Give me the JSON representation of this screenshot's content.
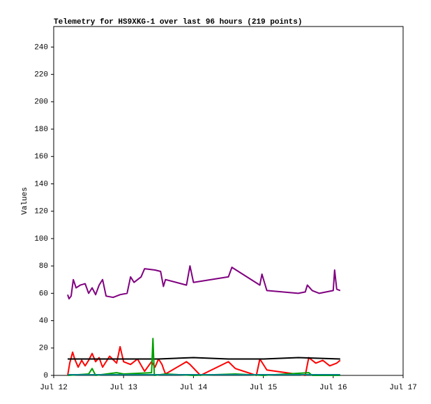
{
  "chart_data": {
    "type": "line",
    "title": "Telemetry for HS9XKG-1 over last 96 hours (219 points)",
    "y_label": "Values",
    "xlim": [
      0,
      5
    ],
    "xticks": [
      {
        "value": 0,
        "label": "Jul 12"
      },
      {
        "value": 1,
        "label": "Jul 13"
      },
      {
        "value": 2,
        "label": "Jul 14"
      },
      {
        "value": 3,
        "label": "Jul 15"
      },
      {
        "value": 4,
        "label": "Jul 16"
      },
      {
        "value": 5,
        "label": "Jul 17"
      }
    ],
    "ylim": [
      0,
      255
    ],
    "yticks": [
      0,
      20,
      40,
      60,
      80,
      100,
      120,
      140,
      160,
      180,
      200,
      220,
      240
    ],
    "series": [
      {
        "color": "#800080",
        "x": [
          0.2,
          0.22,
          0.25,
          0.28,
          0.32,
          0.38,
          0.45,
          0.5,
          0.55,
          0.6,
          0.65,
          0.7,
          0.75,
          0.85,
          0.95,
          1.05,
          1.1,
          1.15,
          1.25,
          1.3,
          1.45,
          1.53,
          1.57,
          1.6,
          1.9,
          1.95,
          2.0,
          2.5,
          2.55,
          2.95,
          2.98,
          3.05,
          3.5,
          3.6,
          3.63,
          3.7,
          3.8,
          3.9,
          4.0,
          4.02,
          4.05,
          4.1
        ],
        "values": [
          59,
          56,
          58,
          70,
          64,
          66,
          67,
          60,
          64,
          59,
          66,
          70,
          58,
          57,
          59,
          60,
          72,
          68,
          72,
          78,
          77,
          76,
          65,
          70,
          66,
          80,
          68,
          72,
          79,
          66,
          74,
          62,
          60,
          61,
          66,
          62,
          60,
          61,
          62,
          77,
          63,
          62
        ]
      },
      {
        "color": "#ff0000",
        "x": [
          0.2,
          0.23,
          0.27,
          0.3,
          0.35,
          0.4,
          0.45,
          0.5,
          0.55,
          0.6,
          0.65,
          0.7,
          0.8,
          0.9,
          0.95,
          1.0,
          1.1,
          1.2,
          1.3,
          1.4,
          1.45,
          1.5,
          1.55,
          1.57,
          1.6,
          1.9,
          1.95,
          2.1,
          2.5,
          2.6,
          2.9,
          2.95,
          3.05,
          3.6,
          3.65,
          3.75,
          3.85,
          3.95,
          4.05,
          4.1
        ],
        "values": [
          0,
          9,
          17,
          12,
          6,
          11,
          7,
          11,
          16,
          10,
          13,
          6,
          14,
          9,
          21,
          10,
          8,
          12,
          3,
          10,
          6,
          12,
          8,
          5,
          1,
          10,
          8,
          0,
          10,
          5,
          0,
          12,
          4,
          0,
          13,
          9,
          11,
          7,
          9,
          11
        ]
      },
      {
        "color": "#000000",
        "x": [
          0.2,
          1.0,
          1.5,
          2.0,
          2.5,
          3.0,
          3.5,
          4.1
        ],
        "values": [
          12,
          12,
          12,
          13,
          12,
          12,
          13,
          12
        ]
      },
      {
        "color": "#00a000",
        "x": [
          0.2,
          0.5,
          0.55,
          0.6,
          0.9,
          1.0,
          1.4,
          1.42,
          1.44,
          1.6,
          2.0,
          2.6,
          3.0,
          3.65,
          3.7,
          4.1
        ],
        "values": [
          0,
          1,
          5,
          0,
          2,
          1,
          2,
          27,
          0,
          1,
          0,
          1,
          0,
          2,
          0,
          0
        ]
      },
      {
        "color": "#008080",
        "x": [
          0.2,
          1.0,
          2.0,
          3.0,
          4.1
        ],
        "values": [
          0.5,
          0.5,
          0.5,
          0.5,
          0.5
        ]
      }
    ]
  }
}
